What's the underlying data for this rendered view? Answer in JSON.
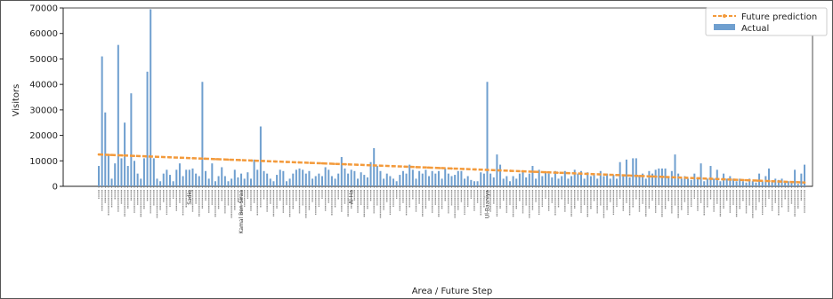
{
  "chart_data": {
    "type": "bar",
    "xlabel": "Area / Future Step",
    "ylabel": "Visitors",
    "ylim": [
      0,
      70000
    ],
    "yticks": [
      0,
      10000,
      20000,
      30000,
      40000,
      50000,
      60000,
      70000
    ],
    "legend": {
      "placement": "top-right",
      "entries": [
        "Future prediction",
        "Actual"
      ]
    },
    "colors": {
      "actual": "#6f9fcf",
      "prediction": "#f39a3b"
    },
    "visible_category_labels": [
      "Sadiq",
      "Kamal Ben Siraa",
      "Al-Ha",
      "Ul-Baaniya"
    ],
    "series": [
      {
        "name": "Actual",
        "kind": "bar",
        "values": [
          8000,
          51000,
          29000,
          12000,
          3000,
          9000,
          55500,
          11000,
          25000,
          8000,
          36500,
          10000,
          5000,
          3000,
          11000,
          45000,
          69500,
          11000,
          3000,
          2000,
          5000,
          6500,
          4500,
          2000,
          6500,
          9000,
          4000,
          6500,
          6500,
          7000,
          5000,
          4000,
          41000,
          6000,
          3000,
          9000,
          2000,
          4000,
          7500,
          4000,
          2000,
          3000,
          6500,
          3500,
          5000,
          3000,
          5500,
          3000,
          10500,
          6500,
          23500,
          6000,
          5000,
          3000,
          2000,
          4500,
          6500,
          6000,
          2000,
          3000,
          5000,
          6500,
          7000,
          6500,
          5000,
          6000,
          3000,
          4000,
          5000,
          4000,
          7500,
          6500,
          4000,
          3000,
          5000,
          11500,
          7000,
          5000,
          6500,
          6000,
          3000,
          5500,
          4500,
          3500,
          9500,
          15000,
          8000,
          6000,
          3000,
          5000,
          4000,
          3000,
          2000,
          4500,
          6000,
          5000,
          8500,
          6500,
          3000,
          6000,
          5000,
          6500,
          4000,
          6000,
          5000,
          6000,
          3000,
          7000,
          5000,
          4000,
          4500,
          6000,
          6000,
          3000,
          4000,
          2500,
          2000,
          2000,
          5500,
          5000,
          41000,
          5000,
          3500,
          12500,
          8500,
          3000,
          4000,
          2000,
          4000,
          3000,
          5000,
          6000,
          3500,
          5000,
          8000,
          3000,
          6500,
          4000,
          5500,
          5000,
          3500,
          6000,
          3000,
          4000,
          6000,
          3000,
          4000,
          6500,
          5000,
          6000,
          3000,
          5500,
          4000,
          5000,
          3000,
          6000,
          4000,
          5000,
          3000,
          4500,
          3000,
          9500,
          4000,
          10500,
          3500,
          11000,
          11000,
          4000,
          5000,
          3000,
          6000,
          5000,
          6500,
          7000,
          7000,
          7000,
          3500,
          6000,
          12500,
          5000,
          3000,
          4000,
          3000,
          2500,
          5000,
          3000,
          9000,
          2000,
          3000,
          8000,
          3000,
          6500,
          2000,
          5000,
          3000,
          4000,
          3000,
          2000,
          3000,
          2000,
          1500,
          3000,
          2000,
          1500,
          5000,
          2000,
          4000,
          7000,
          2000,
          3000,
          2500,
          3000,
          1500,
          2000,
          2000,
          6500,
          1000,
          5000,
          8500
        ]
      },
      {
        "name": "Future prediction",
        "kind": "line",
        "start": 12500,
        "end": 1500
      }
    ]
  }
}
